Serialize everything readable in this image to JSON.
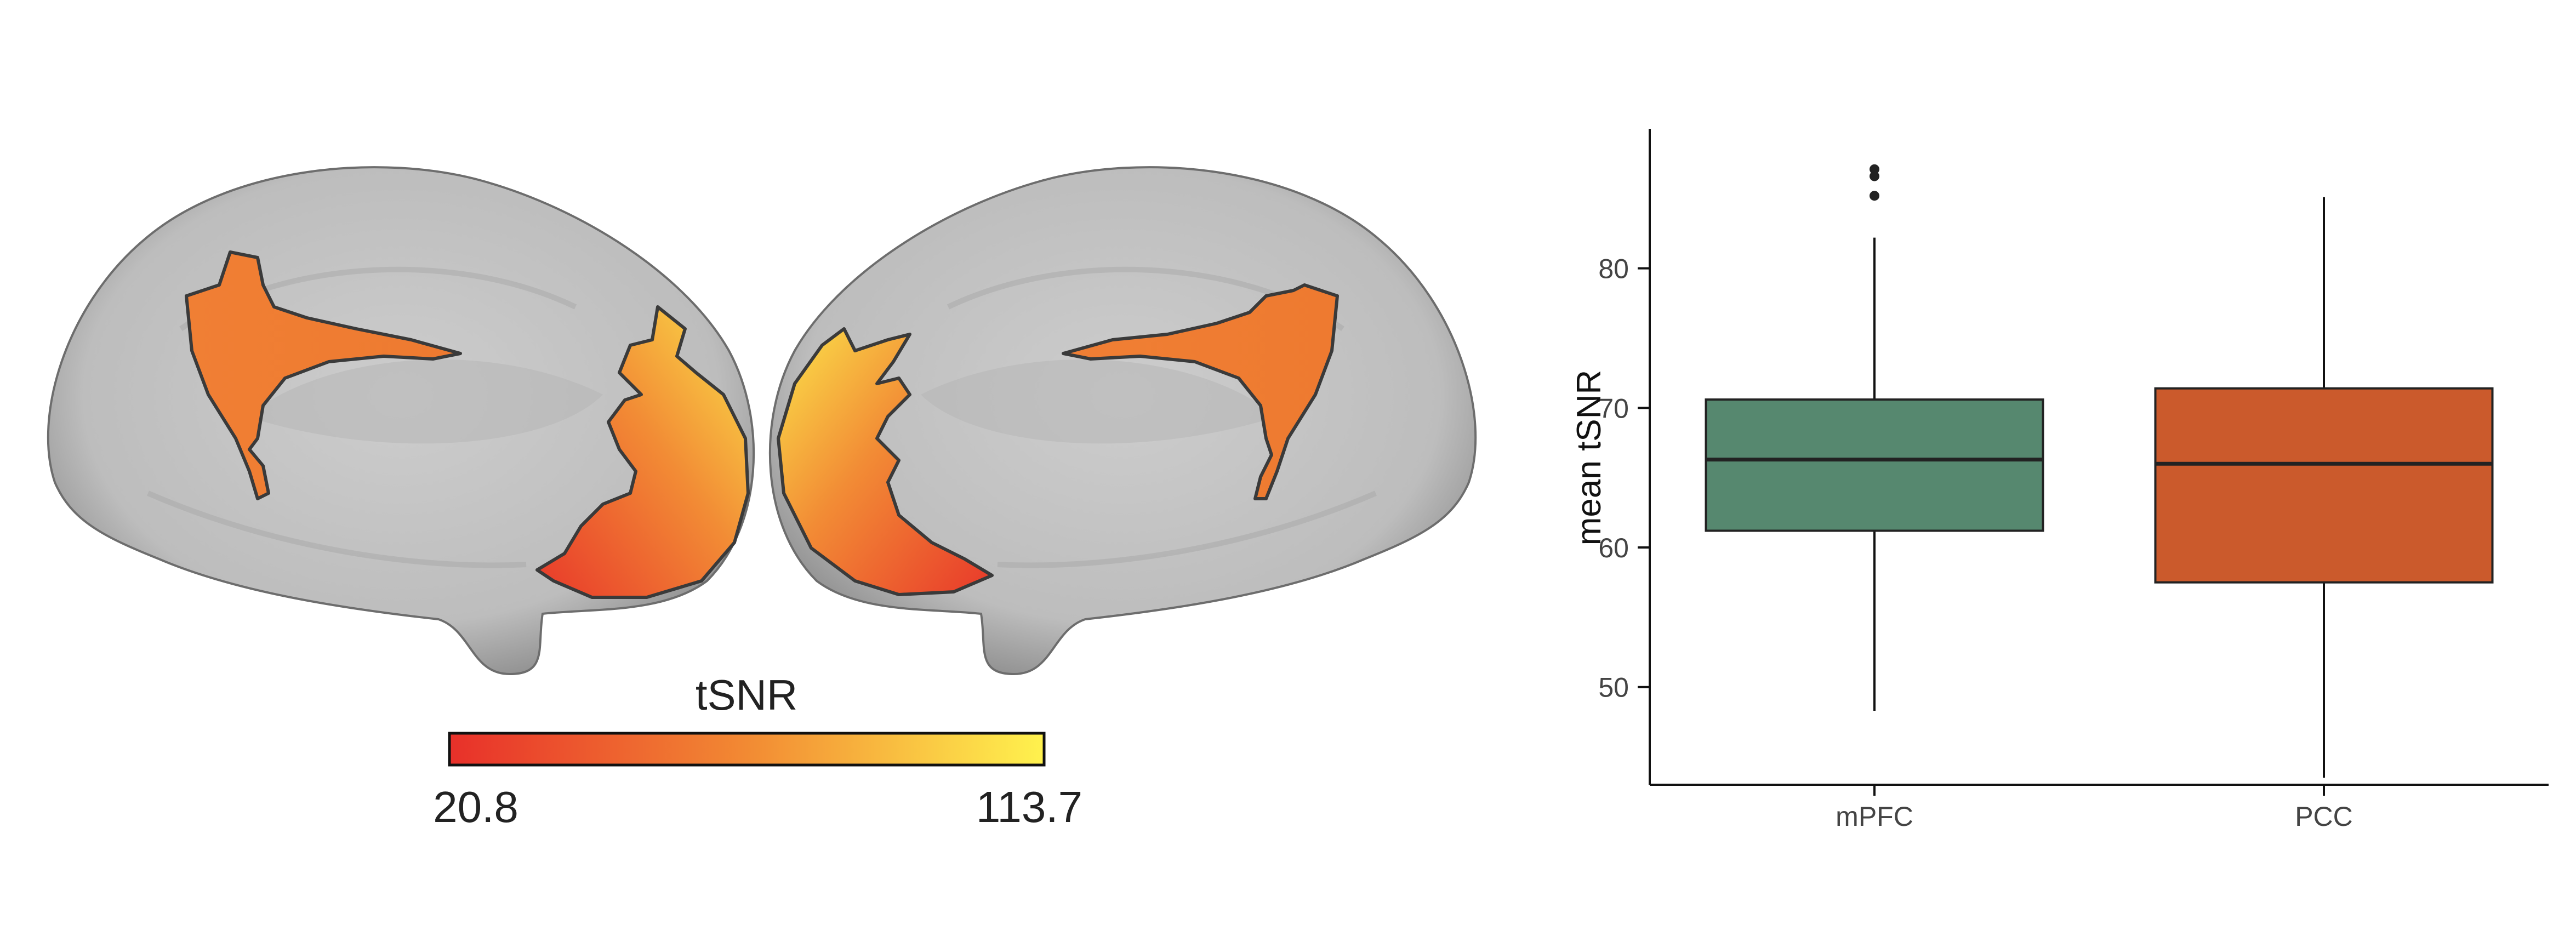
{
  "brain_panel": {
    "colorbar": {
      "label": "tSNR",
      "min_label": "20.8",
      "max_label": "113.7",
      "colors": [
        "#e8302a",
        "#f28a33",
        "#fff24e"
      ]
    },
    "surface_color": "#c4c4c4"
  },
  "chart_data": {
    "type": "box",
    "title": "",
    "xlabel": "",
    "ylabel": "mean tSNR",
    "ylim": [
      43,
      90
    ],
    "yticks": [
      50,
      60,
      70,
      80
    ],
    "grid": false,
    "legend": "none",
    "categories": [
      "mPFC",
      "PCC"
    ],
    "boxes": [
      {
        "category": "mPFC",
        "whisker_low": 48.3,
        "q1": 61.2,
        "median": 66.3,
        "q3": 70.6,
        "whisker_high": 82.2,
        "outliers": [
          85.2,
          86.6,
          87.1
        ],
        "color": "#56886f"
      },
      {
        "category": "PCC",
        "whisker_low": 43.5,
        "q1": 57.5,
        "median": 66.0,
        "q3": 71.4,
        "whisker_high": 85.1,
        "outliers": [],
        "color": "#cb5a2c"
      }
    ]
  }
}
